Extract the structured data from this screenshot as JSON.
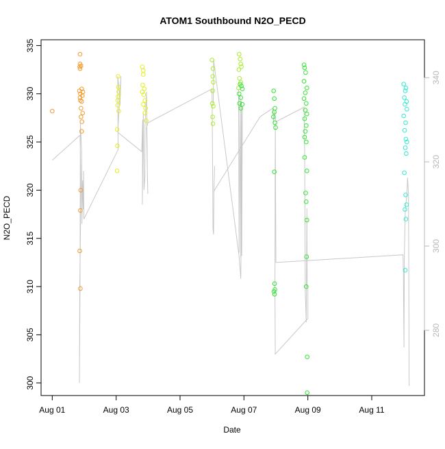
{
  "chart_data": {
    "type": "scatter",
    "title": "ATOM1 Southbound N2O_PECD",
    "xlabel": "Date",
    "ylabel": "N2O_PECD",
    "x_ticks": [
      "Aug 01",
      "Aug 03",
      "Aug 05",
      "Aug 07",
      "Aug 09",
      "Aug 11"
    ],
    "x_tick_days": [
      1,
      3,
      5,
      7,
      9,
      11
    ],
    "xlim_days": [
      0.65,
      12.65
    ],
    "y_ticks": [
      300,
      305,
      310,
      315,
      320,
      325,
      330,
      335
    ],
    "ylim": [
      298.7,
      335.6
    ],
    "y2_ticks": [
      280,
      300,
      320,
      340
    ],
    "y2lim": [
      264.5,
      349.0
    ],
    "grid": false,
    "colors": {
      "orange": "#f39b2c",
      "yellow": "#e3ee1e",
      "green_yellow": "#a8ee28",
      "green": "#30e630",
      "cyan": "#30ead0",
      "line": "#c8c8c8",
      "axis": "#000000",
      "right_axis": "#b8b8b8"
    },
    "series": [
      {
        "color": "#f39b2c",
        "points": [
          [
            1.0,
            328.2
          ],
          [
            1.87,
            334.1
          ],
          [
            1.87,
            333.1
          ],
          [
            1.86,
            332.8
          ],
          [
            1.87,
            332.6
          ],
          [
            1.9,
            332.9
          ],
          [
            1.85,
            330.3
          ],
          [
            1.88,
            330.0
          ],
          [
            1.92,
            330.5
          ],
          [
            1.96,
            330.2
          ],
          [
            1.87,
            329.6
          ],
          [
            1.94,
            329.8
          ],
          [
            1.88,
            329.3
          ],
          [
            1.92,
            329.2
          ],
          [
            1.9,
            328.5
          ],
          [
            1.95,
            328.0
          ],
          [
            1.9,
            327.6
          ],
          [
            1.93,
            327.1
          ],
          [
            1.92,
            326.1
          ],
          [
            1.89,
            320.0
          ],
          [
            1.88,
            317.9
          ],
          [
            1.86,
            313.7
          ],
          [
            1.88,
            309.8
          ]
        ]
      },
      {
        "color": "#e3ee1e",
        "points": [
          [
            3.06,
            331.8
          ],
          [
            3.07,
            330.7
          ],
          [
            3.08,
            330.2
          ],
          [
            3.06,
            329.7
          ],
          [
            3.05,
            329.3
          ],
          [
            3.05,
            328.8
          ],
          [
            3.08,
            328.2
          ],
          [
            3.03,
            326.3
          ],
          [
            3.04,
            324.6
          ],
          [
            3.03,
            322.0
          ],
          [
            3.82,
            332.8
          ],
          [
            3.85,
            332.4
          ],
          [
            3.85,
            332.0
          ],
          [
            3.83,
            330.9
          ],
          [
            3.88,
            330.5
          ],
          [
            3.82,
            330.2
          ],
          [
            3.86,
            329.9
          ],
          [
            3.9,
            329.3
          ],
          [
            3.85,
            328.9
          ],
          [
            3.92,
            328.5
          ],
          [
            3.9,
            328.0
          ],
          [
            3.94,
            327.2
          ]
        ]
      },
      {
        "color": "#a8ee28",
        "points": [
          [
            6.0,
            333.5
          ],
          [
            6.03,
            332.6
          ],
          [
            6.02,
            331.8
          ],
          [
            6.04,
            331.2
          ],
          [
            6.02,
            330.3
          ],
          [
            6.01,
            329.0
          ],
          [
            6.04,
            328.7
          ],
          [
            6.02,
            327.6
          ],
          [
            6.03,
            326.9
          ],
          [
            6.85,
            334.1
          ],
          [
            6.88,
            333.6
          ],
          [
            6.9,
            333.1
          ],
          [
            6.84,
            332.5
          ],
          [
            6.92,
            332.8
          ],
          [
            6.86,
            331.6
          ],
          [
            6.9,
            331.2
          ],
          [
            6.83,
            330.6
          ]
        ]
      },
      {
        "color": "#30e630",
        "points": [
          [
            6.88,
            331.0
          ],
          [
            6.92,
            330.8
          ],
          [
            6.95,
            330.5
          ],
          [
            6.85,
            330.0
          ],
          [
            6.9,
            329.6
          ],
          [
            6.86,
            329.0
          ],
          [
            6.9,
            328.5
          ],
          [
            6.95,
            328.9
          ],
          [
            7.93,
            330.3
          ],
          [
            7.95,
            329.5
          ],
          [
            7.97,
            328.5
          ],
          [
            7.95,
            328.1
          ],
          [
            7.92,
            327.6
          ],
          [
            7.97,
            327.0
          ],
          [
            7.99,
            326.5
          ],
          [
            7.95,
            321.9
          ],
          [
            7.96,
            310.3
          ],
          [
            7.97,
            309.7
          ],
          [
            7.94,
            309.5
          ],
          [
            7.96,
            309.2
          ],
          [
            8.88,
            333.0
          ],
          [
            8.9,
            332.7
          ],
          [
            8.93,
            332.2
          ],
          [
            8.88,
            331.3
          ],
          [
            8.97,
            330.6
          ],
          [
            8.92,
            330.1
          ],
          [
            8.88,
            329.5
          ],
          [
            8.95,
            329.0
          ],
          [
            8.92,
            328.3
          ],
          [
            8.97,
            327.9
          ],
          [
            8.9,
            327.4
          ],
          [
            8.95,
            326.7
          ],
          [
            8.92,
            326.1
          ],
          [
            8.9,
            325.5
          ],
          [
            8.95,
            325.0
          ],
          [
            8.9,
            323.4
          ],
          [
            8.97,
            322.0
          ],
          [
            8.93,
            319.7
          ],
          [
            8.95,
            318.8
          ],
          [
            8.97,
            316.9
          ],
          [
            8.96,
            313.1
          ],
          [
            8.95,
            310.0
          ],
          [
            8.98,
            302.7
          ],
          [
            8.98,
            299.0
          ]
        ]
      },
      {
        "color": "#30ead0",
        "points": [
          [
            12.0,
            331.0
          ],
          [
            12.07,
            330.6
          ],
          [
            12.05,
            330.3
          ],
          [
            12.02,
            329.6
          ],
          [
            12.09,
            329.2
          ],
          [
            12.04,
            328.9
          ],
          [
            12.1,
            328.4
          ],
          [
            12.0,
            327.7
          ],
          [
            12.06,
            327.0
          ],
          [
            12.03,
            326.2
          ],
          [
            12.07,
            325.3
          ],
          [
            12.1,
            325.0
          ],
          [
            12.05,
            324.4
          ],
          [
            12.08,
            323.8
          ],
          [
            12.02,
            321.8
          ],
          [
            12.06,
            319.5
          ],
          [
            12.09,
            318.5
          ],
          [
            12.04,
            318.0
          ],
          [
            12.07,
            317.0
          ],
          [
            12.05,
            311.7
          ]
        ]
      }
    ],
    "lines": [
      [
        [
          1.0,
          323.1
        ],
        [
          1.87,
          325.7
        ],
        [
          1.88,
          324.0
        ],
        [
          1.9,
          320.0
        ],
        [
          1.86,
          310.0
        ],
        [
          1.85,
          300.0
        ],
        [
          1.87,
          310.2
        ],
        [
          1.88,
          327.0
        ],
        [
          1.92,
          324.0
        ],
        [
          1.93,
          316.5
        ],
        [
          1.95,
          321.0
        ],
        [
          1.97,
          318.0
        ],
        [
          1.98,
          322.0
        ],
        [
          1.99,
          317.0
        ],
        [
          3.06,
          324.2
        ],
        [
          3.05,
          331.8
        ],
        [
          3.1,
          330.3
        ],
        [
          3.12,
          328.8
        ],
        [
          3.15,
          331.8
        ],
        [
          3.05,
          326.0
        ],
        [
          3.8,
          324.0
        ],
        [
          3.83,
          327.3
        ],
        [
          3.82,
          318.5
        ],
        [
          3.85,
          328.0
        ],
        [
          3.87,
          320.0
        ],
        [
          3.9,
          321.5
        ],
        [
          3.9,
          326.5
        ],
        [
          3.95,
          330.2
        ],
        [
          3.98,
          321.0
        ],
        [
          3.99,
          319.6
        ],
        [
          3.95,
          326.5
        ],
        [
          4.0,
          327.0
        ],
        [
          6.0,
          330.5
        ],
        [
          6.02,
          322.0
        ],
        [
          6.03,
          316.0
        ],
        [
          6.05,
          315.4
        ],
        [
          6.06,
          320.0
        ],
        [
          6.08,
          322.5
        ],
        [
          6.06,
          319.9
        ],
        [
          7.5,
          327.6
        ],
        [
          7.9,
          328.5
        ],
        [
          7.93,
          327.0
        ],
        [
          7.96,
          328.2
        ],
        [
          8.0,
          327.1
        ],
        [
          8.88,
          328.6
        ],
        [
          8.9,
          324.0
        ],
        [
          8.92,
          309.4
        ],
        [
          8.95,
          306.3
        ],
        [
          8.97,
          318.1
        ],
        [
          8.98,
          310.0
        ],
        [
          9.0,
          310.0
        ],
        [
          9.0,
          306.7
        ],
        [
          7.98,
          303.0
        ],
        [
          7.97,
          310.0
        ],
        [
          7.98,
          327.0
        ],
        [
          8.0,
          312.5
        ],
        [
          11.98,
          313.3
        ],
        [
          11.99,
          311.5
        ],
        [
          12.0,
          307.0
        ],
        [
          12.01,
          303.7
        ],
        [
          12.02,
          313.0
        ],
        [
          12.05,
          318.0
        ],
        [
          12.1,
          319.5
        ],
        [
          12.12,
          321.3
        ],
        [
          12.15,
          319.6
        ],
        [
          12.16,
          312.0
        ],
        [
          12.17,
          299.7
        ]
      ],
      [
        [
          6.83,
          330.5
        ],
        [
          6.85,
          313.5
        ],
        [
          6.88,
          329.8
        ],
        [
          6.9,
          313.0
        ],
        [
          6.92,
          329.3
        ],
        [
          6.93,
          313.2
        ],
        [
          6.95,
          328.7
        ],
        [
          6.9,
          310.8
        ],
        [
          6.85,
          313.1
        ],
        [
          6.05,
          333.5
        ],
        [
          6.04,
          329.0
        ]
      ]
    ]
  }
}
